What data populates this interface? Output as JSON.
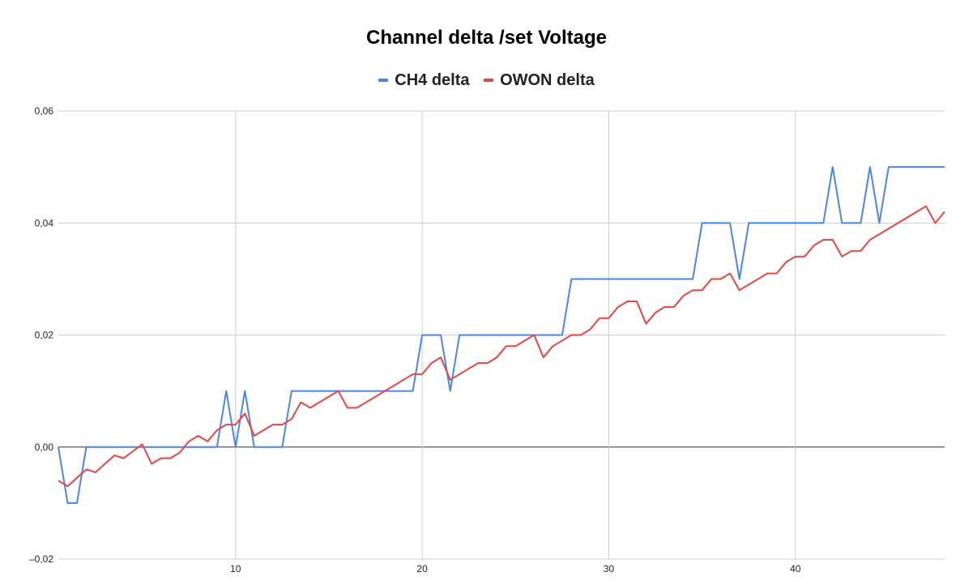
{
  "chart_data": {
    "type": "line",
    "title": "Channel delta /set Voltage",
    "xlabel": "",
    "ylabel": "",
    "xlim": [
      0.5,
      48
    ],
    "ylim": [
      -0.02,
      0.06
    ],
    "x_ticks": [
      10,
      20,
      30,
      40
    ],
    "x_tick_labels": [
      "10",
      "20",
      "30",
      "40"
    ],
    "y_ticks": [
      -0.02,
      0.0,
      0.02,
      0.04,
      0.06
    ],
    "y_tick_labels": [
      "–0,02",
      "0,00",
      "0,02",
      "0,04",
      "0,06"
    ],
    "grid": true,
    "legend": "top",
    "series": [
      {
        "name": "CH4 delta",
        "color": "#4a86e8",
        "points": [
          [
            0.5,
            0.0
          ],
          [
            1.0,
            -0.01
          ],
          [
            1.5,
            -0.01
          ],
          [
            2.0,
            0.0
          ],
          [
            9.0,
            0.0
          ],
          [
            9.5,
            0.01
          ],
          [
            10.0,
            0.0
          ],
          [
            10.5,
            0.01
          ],
          [
            11.0,
            0.0
          ],
          [
            12.5,
            0.0
          ],
          [
            13.0,
            0.01
          ],
          [
            19.5,
            0.01
          ],
          [
            20.0,
            0.02
          ],
          [
            21.0,
            0.02
          ],
          [
            21.5,
            0.01
          ],
          [
            22.0,
            0.02
          ],
          [
            27.5,
            0.02
          ],
          [
            28.0,
            0.03
          ],
          [
            34.5,
            0.03
          ],
          [
            35.0,
            0.04
          ],
          [
            36.5,
            0.04
          ],
          [
            37.0,
            0.03
          ],
          [
            37.5,
            0.04
          ],
          [
            41.5,
            0.04
          ],
          [
            42.0,
            0.05
          ],
          [
            42.5,
            0.04
          ],
          [
            43.5,
            0.04
          ],
          [
            44.0,
            0.05
          ],
          [
            44.5,
            0.04
          ],
          [
            45.0,
            0.05
          ],
          [
            48.0,
            0.05
          ]
        ]
      },
      {
        "name": "OWON delta",
        "color": "#e8453c",
        "points": [
          [
            0.5,
            -0.006
          ],
          [
            1.0,
            -0.007
          ],
          [
            1.5,
            -0.0055
          ],
          [
            2.0,
            -0.004
          ],
          [
            2.5,
            -0.0045
          ],
          [
            3.0,
            -0.003
          ],
          [
            3.5,
            -0.0015
          ],
          [
            4.0,
            -0.002
          ],
          [
            5.0,
            0.0005
          ],
          [
            5.5,
            -0.003
          ],
          [
            6.0,
            -0.002
          ],
          [
            6.5,
            -0.002
          ],
          [
            7.0,
            -0.001
          ],
          [
            7.5,
            0.001
          ],
          [
            8.0,
            0.002
          ],
          [
            8.5,
            0.001
          ],
          [
            9.0,
            0.003
          ],
          [
            9.5,
            0.004
          ],
          [
            10.0,
            0.004
          ],
          [
            10.5,
            0.006
          ],
          [
            11.0,
            0.002
          ],
          [
            11.5,
            0.003
          ],
          [
            12.0,
            0.004
          ],
          [
            12.5,
            0.004
          ],
          [
            13.0,
            0.005
          ],
          [
            13.5,
            0.008
          ],
          [
            14.0,
            0.007
          ],
          [
            15.5,
            0.01
          ],
          [
            16.0,
            0.007
          ],
          [
            16.5,
            0.007
          ],
          [
            19.5,
            0.013
          ],
          [
            20.0,
            0.013
          ],
          [
            20.5,
            0.015
          ],
          [
            21.0,
            0.016
          ],
          [
            21.5,
            0.012
          ],
          [
            23.0,
            0.015
          ],
          [
            23.5,
            0.015
          ],
          [
            24.0,
            0.016
          ],
          [
            24.5,
            0.018
          ],
          [
            25.0,
            0.018
          ],
          [
            26.0,
            0.02
          ],
          [
            26.5,
            0.016
          ],
          [
            27.0,
            0.018
          ],
          [
            28.0,
            0.02
          ],
          [
            28.5,
            0.02
          ],
          [
            29.0,
            0.021
          ],
          [
            29.5,
            0.023
          ],
          [
            30.0,
            0.023
          ],
          [
            30.5,
            0.025
          ],
          [
            31.0,
            0.026
          ],
          [
            31.5,
            0.026
          ],
          [
            32.0,
            0.022
          ],
          [
            32.5,
            0.024
          ],
          [
            33.0,
            0.025
          ],
          [
            33.5,
            0.025
          ],
          [
            34.0,
            0.027
          ],
          [
            34.5,
            0.028
          ],
          [
            35.0,
            0.028
          ],
          [
            35.5,
            0.03
          ],
          [
            36.0,
            0.03
          ],
          [
            36.5,
            0.031
          ],
          [
            37.0,
            0.028
          ],
          [
            38.5,
            0.031
          ],
          [
            39.0,
            0.031
          ],
          [
            39.5,
            0.033
          ],
          [
            40.0,
            0.034
          ],
          [
            40.5,
            0.034
          ],
          [
            41.0,
            0.036
          ],
          [
            41.5,
            0.037
          ],
          [
            42.0,
            0.037
          ],
          [
            42.5,
            0.034
          ],
          [
            43.0,
            0.035
          ],
          [
            43.5,
            0.035
          ],
          [
            44.0,
            0.037
          ],
          [
            47.0,
            0.043
          ],
          [
            47.5,
            0.04
          ],
          [
            48.0,
            0.042
          ]
        ]
      }
    ]
  }
}
